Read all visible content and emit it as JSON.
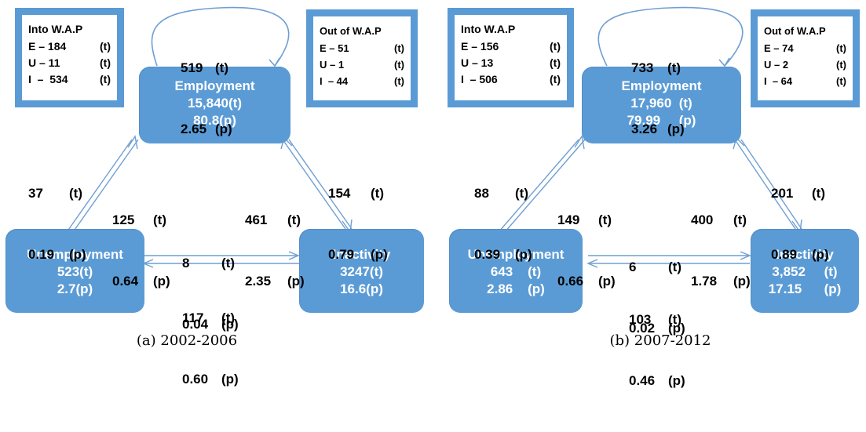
{
  "panels": [
    {
      "caption": "(a) 2002-2006",
      "into_wap": {
        "title": "Into W.A.P",
        "rows": [
          [
            "E – 184",
            "(t)"
          ],
          [
            "U – 11",
            "(t)"
          ],
          [
            "I  –  534",
            "(t)"
          ]
        ]
      },
      "out_wap": {
        "title": "Out of W.A.P",
        "rows": [
          [
            "E – 51",
            "(t)"
          ],
          [
            "U – 1",
            "(t)"
          ],
          [
            "I  – 44",
            "(t)"
          ]
        ]
      },
      "employment": {
        "name": "Employment",
        "line1": "15,840(t)",
        "line2": "80.8(p)"
      },
      "unemployment": {
        "name": "Unemployment",
        "line1": "523(t)",
        "line2": "2.7(p)"
      },
      "inactivity": {
        "name": "Inactivity",
        "line1": "3247(t)",
        "line2": "16.6(p)"
      },
      "flows": {
        "self_e": [
          "519",
          "(t)",
          "2.65",
          "(p)"
        ],
        "u_to_e": [
          "37",
          "(t)",
          "0.19",
          "(p)"
        ],
        "e_to_u": [
          "125",
          "(t)",
          "0.64",
          "(p)"
        ],
        "i_to_e": [
          "461",
          "(t)",
          "2.35",
          "(p)"
        ],
        "e_to_i": [
          "154",
          "(t)",
          "0.79",
          "(p)"
        ],
        "u_to_i": [
          "8",
          "(t)",
          "0.04",
          "(p)"
        ],
        "i_to_u": [
          "117",
          "(t)",
          "0.60",
          "(p)"
        ]
      }
    },
    {
      "caption": "(b) 2007-2012",
      "into_wap": {
        "title": "Into W.A.P",
        "rows": [
          [
            "E – 156",
            "(t)"
          ],
          [
            "U – 13",
            "(t)"
          ],
          [
            "I  – 506",
            "(t)"
          ]
        ]
      },
      "out_wap": {
        "title": "Out of W.A.P",
        "rows": [
          [
            "E – 74",
            "(t)"
          ],
          [
            "U – 2",
            "(t)"
          ],
          [
            "I  – 64",
            "(t)"
          ]
        ]
      },
      "employment": {
        "name": "Employment",
        "line1": "17,960  (t)",
        "line2": "79.99     (p)"
      },
      "unemployment": {
        "name": "Unemployment",
        "line1": "643    (t)",
        "line2": "2.86    (p)"
      },
      "inactivity": {
        "name": "Inactivity",
        "line1": "3,852     (t)",
        "line2": "17.15      (p)"
      },
      "flows": {
        "self_e": [
          "733",
          "(t)",
          "3.26",
          "(p)"
        ],
        "u_to_e": [
          "88",
          "(t)",
          "0.39",
          "(p)"
        ],
        "e_to_u": [
          "149",
          "(t)",
          "0.66",
          "(p)"
        ],
        "i_to_e": [
          "400",
          "(t)",
          "1.78",
          "(p)"
        ],
        "e_to_i": [
          "201",
          "(t)",
          "0.89",
          "(p)"
        ],
        "u_to_i": [
          "6",
          "(t)",
          "0.02",
          "(p)"
        ],
        "i_to_u": [
          "103",
          "(t)",
          "0.46",
          "(p)"
        ]
      }
    }
  ],
  "colors": {
    "box": "#5b9bd5",
    "box_border": "#4a86c0",
    "arrow": "#6f9fd2",
    "text_on_box": "#ffffff"
  }
}
